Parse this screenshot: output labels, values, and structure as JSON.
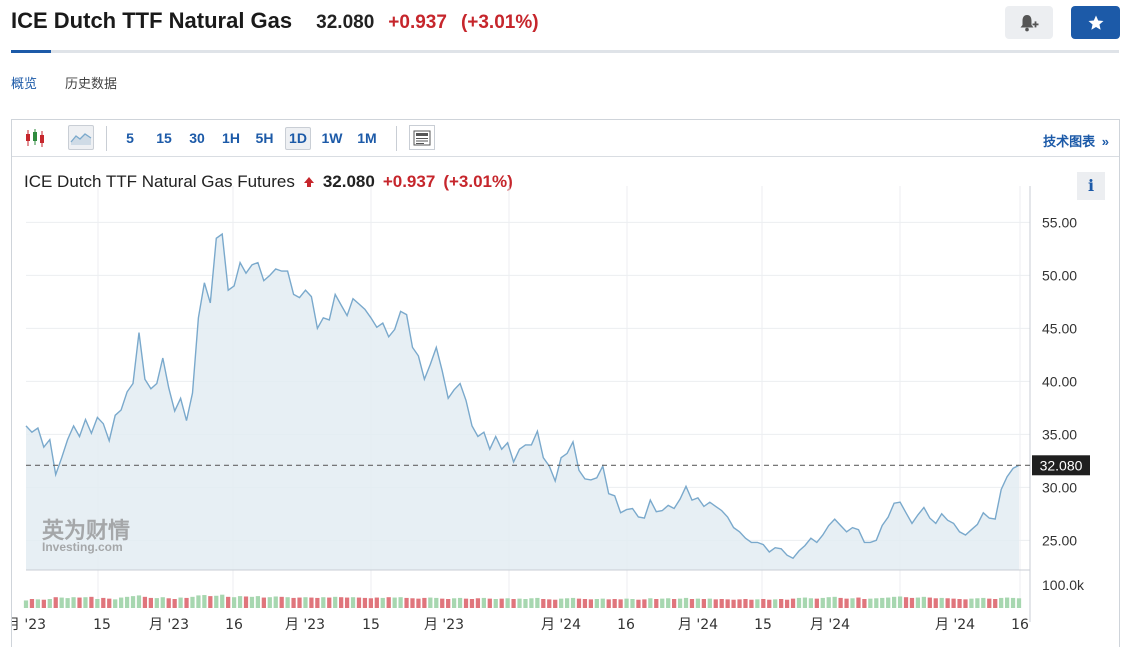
{
  "header": {
    "name": "ICE Dutch TTF Natural Gas",
    "price": "32.080",
    "change": "+0.937",
    "change_pct": "(+3.01%)"
  },
  "tabs": [
    {
      "label": "概览"
    },
    {
      "label": "历史数据"
    }
  ],
  "toolbar": {
    "intervals": [
      "5",
      "15",
      "30",
      "1H",
      "5H",
      "1D",
      "1W",
      "1M"
    ],
    "active_interval": "1D",
    "tech_chart_label": "技术图表",
    "tech_chart_arrow": "»"
  },
  "info": {
    "name": "ICE Dutch TTF Natural Gas Futures",
    "price": "32.080",
    "change": "+0.937",
    "change_pct": "(+3.01%)",
    "info_glyph": "i"
  },
  "watermark": {
    "cn": "英为财情",
    "en": "Investing.com"
  },
  "colors": {
    "accent": "#1c5aa8",
    "down": "#c6262c",
    "area_line": "#7aa9cc",
    "area_fill": "#e3ecf2",
    "vol_up": "#a7d7b0",
    "vol_down": "#e0757c"
  },
  "chart_data": {
    "type": "area",
    "interval": "1D",
    "y_ticks": [
      "55.00",
      "50.00",
      "45.00",
      "40.00",
      "35.00",
      "30.00",
      "25.00"
    ],
    "ylim": [
      22.2,
      57.3
    ],
    "volume_label": "100.0k",
    "last_value": 32.08,
    "last_label": "32.080",
    "x_ticks": [
      "月 '23",
      "15",
      "月 '23",
      "16",
      "月 '23",
      "15",
      "月 '23",
      "月 '24",
      "16",
      "月 '24",
      "15",
      "月 '24",
      "月 '24",
      "16"
    ],
    "values": [
      35.8,
      35.2,
      35.6,
      33.8,
      34.5,
      31.2,
      32.8,
      34.5,
      35.8,
      34.8,
      36.4,
      35.1,
      36.6,
      36.0,
      34.4,
      36.8,
      37.3,
      39.0,
      39.8,
      44.6,
      40.2,
      39.3,
      39.8,
      42.2,
      39.4,
      37.2,
      38.4,
      36.3,
      38.9,
      46.0,
      49.3,
      47.4,
      53.5,
      53.9,
      48.6,
      49.0,
      51.2,
      50.2,
      51.0,
      51.2,
      49.5,
      50.0,
      50.6,
      50.4,
      50.4,
      48.2,
      47.9,
      48.6,
      48.0,
      45.0,
      46.0,
      45.8,
      48.2,
      47.2,
      46.2,
      47.8,
      47.3,
      46.8,
      46.0,
      45.1,
      45.5,
      44.2,
      44.9,
      46.6,
      46.3,
      43.2,
      42.4,
      40.2,
      41.6,
      43.2,
      41.0,
      38.4,
      39.2,
      39.8,
      38.2,
      35.8,
      34.8,
      35.2,
      33.6,
      34.8,
      33.6,
      34.2,
      32.4,
      33.6,
      34.0,
      34.0,
      35.3,
      32.8,
      32.0,
      30.6,
      32.8,
      33.2,
      34.3,
      31.6,
      30.8,
      30.7,
      30.9,
      32.0,
      29.4,
      29.2,
      27.6,
      27.9,
      28.0,
      27.2,
      27.1,
      28.8,
      27.7,
      27.8,
      28.3,
      28.0,
      28.9,
      30.1,
      28.8,
      29.0,
      28.2,
      28.6,
      28.2,
      27.8,
      27.2,
      26.2,
      25.8,
      25.2,
      24.8,
      24.8,
      24.6,
      23.9,
      24.3,
      24.2,
      23.6,
      23.3,
      24.0,
      24.5,
      25.2,
      24.8,
      25.5,
      26.4,
      27.0,
      26.4,
      25.8,
      26.2,
      26.0,
      24.8,
      24.8,
      25.0,
      26.4,
      27.2,
      28.5,
      28.6,
      27.6,
      26.6,
      27.4,
      28.1,
      27.1,
      26.6,
      27.5,
      26.9,
      26.6,
      25.8,
      25.5,
      26.0,
      26.5,
      27.6,
      27.1,
      27.0,
      29.8,
      31.0,
      31.8,
      32.08
    ],
    "volumes": [
      0.42,
      0.5,
      0.48,
      0.46,
      0.5,
      0.6,
      0.58,
      0.55,
      0.6,
      0.58,
      0.6,
      0.62,
      0.5,
      0.56,
      0.52,
      0.48,
      0.58,
      0.62,
      0.66,
      0.7,
      0.62,
      0.56,
      0.55,
      0.6,
      0.54,
      0.5,
      0.58,
      0.56,
      0.62,
      0.7,
      0.72,
      0.66,
      0.68,
      0.74,
      0.62,
      0.6,
      0.66,
      0.64,
      0.62,
      0.66,
      0.58,
      0.6,
      0.64,
      0.62,
      0.6,
      0.56,
      0.58,
      0.6,
      0.58,
      0.56,
      0.6,
      0.58,
      0.62,
      0.6,
      0.58,
      0.6,
      0.58,
      0.56,
      0.54,
      0.58,
      0.56,
      0.6,
      0.58,
      0.6,
      0.56,
      0.54,
      0.52,
      0.56,
      0.58,
      0.56,
      0.52,
      0.5,
      0.54,
      0.56,
      0.52,
      0.5,
      0.54,
      0.56,
      0.52,
      0.5,
      0.52,
      0.54,
      0.5,
      0.52,
      0.5,
      0.54,
      0.56,
      0.5,
      0.48,
      0.46,
      0.52,
      0.54,
      0.56,
      0.52,
      0.5,
      0.48,
      0.5,
      0.52,
      0.48,
      0.5,
      0.48,
      0.52,
      0.5,
      0.46,
      0.48,
      0.54,
      0.5,
      0.52,
      0.54,
      0.5,
      0.52,
      0.56,
      0.5,
      0.52,
      0.5,
      0.52,
      0.48,
      0.5,
      0.48,
      0.46,
      0.48,
      0.5,
      0.46,
      0.48,
      0.5,
      0.46,
      0.48,
      0.5,
      0.46,
      0.52,
      0.56,
      0.58,
      0.54,
      0.52,
      0.56,
      0.6,
      0.62,
      0.56,
      0.52,
      0.54,
      0.58,
      0.5,
      0.52,
      0.54,
      0.56,
      0.58,
      0.62,
      0.64,
      0.6,
      0.56,
      0.58,
      0.62,
      0.58,
      0.54,
      0.56,
      0.54,
      0.52,
      0.5,
      0.48,
      0.52,
      0.54,
      0.56,
      0.52,
      0.5,
      0.56,
      0.58,
      0.56,
      0.54
    ]
  }
}
